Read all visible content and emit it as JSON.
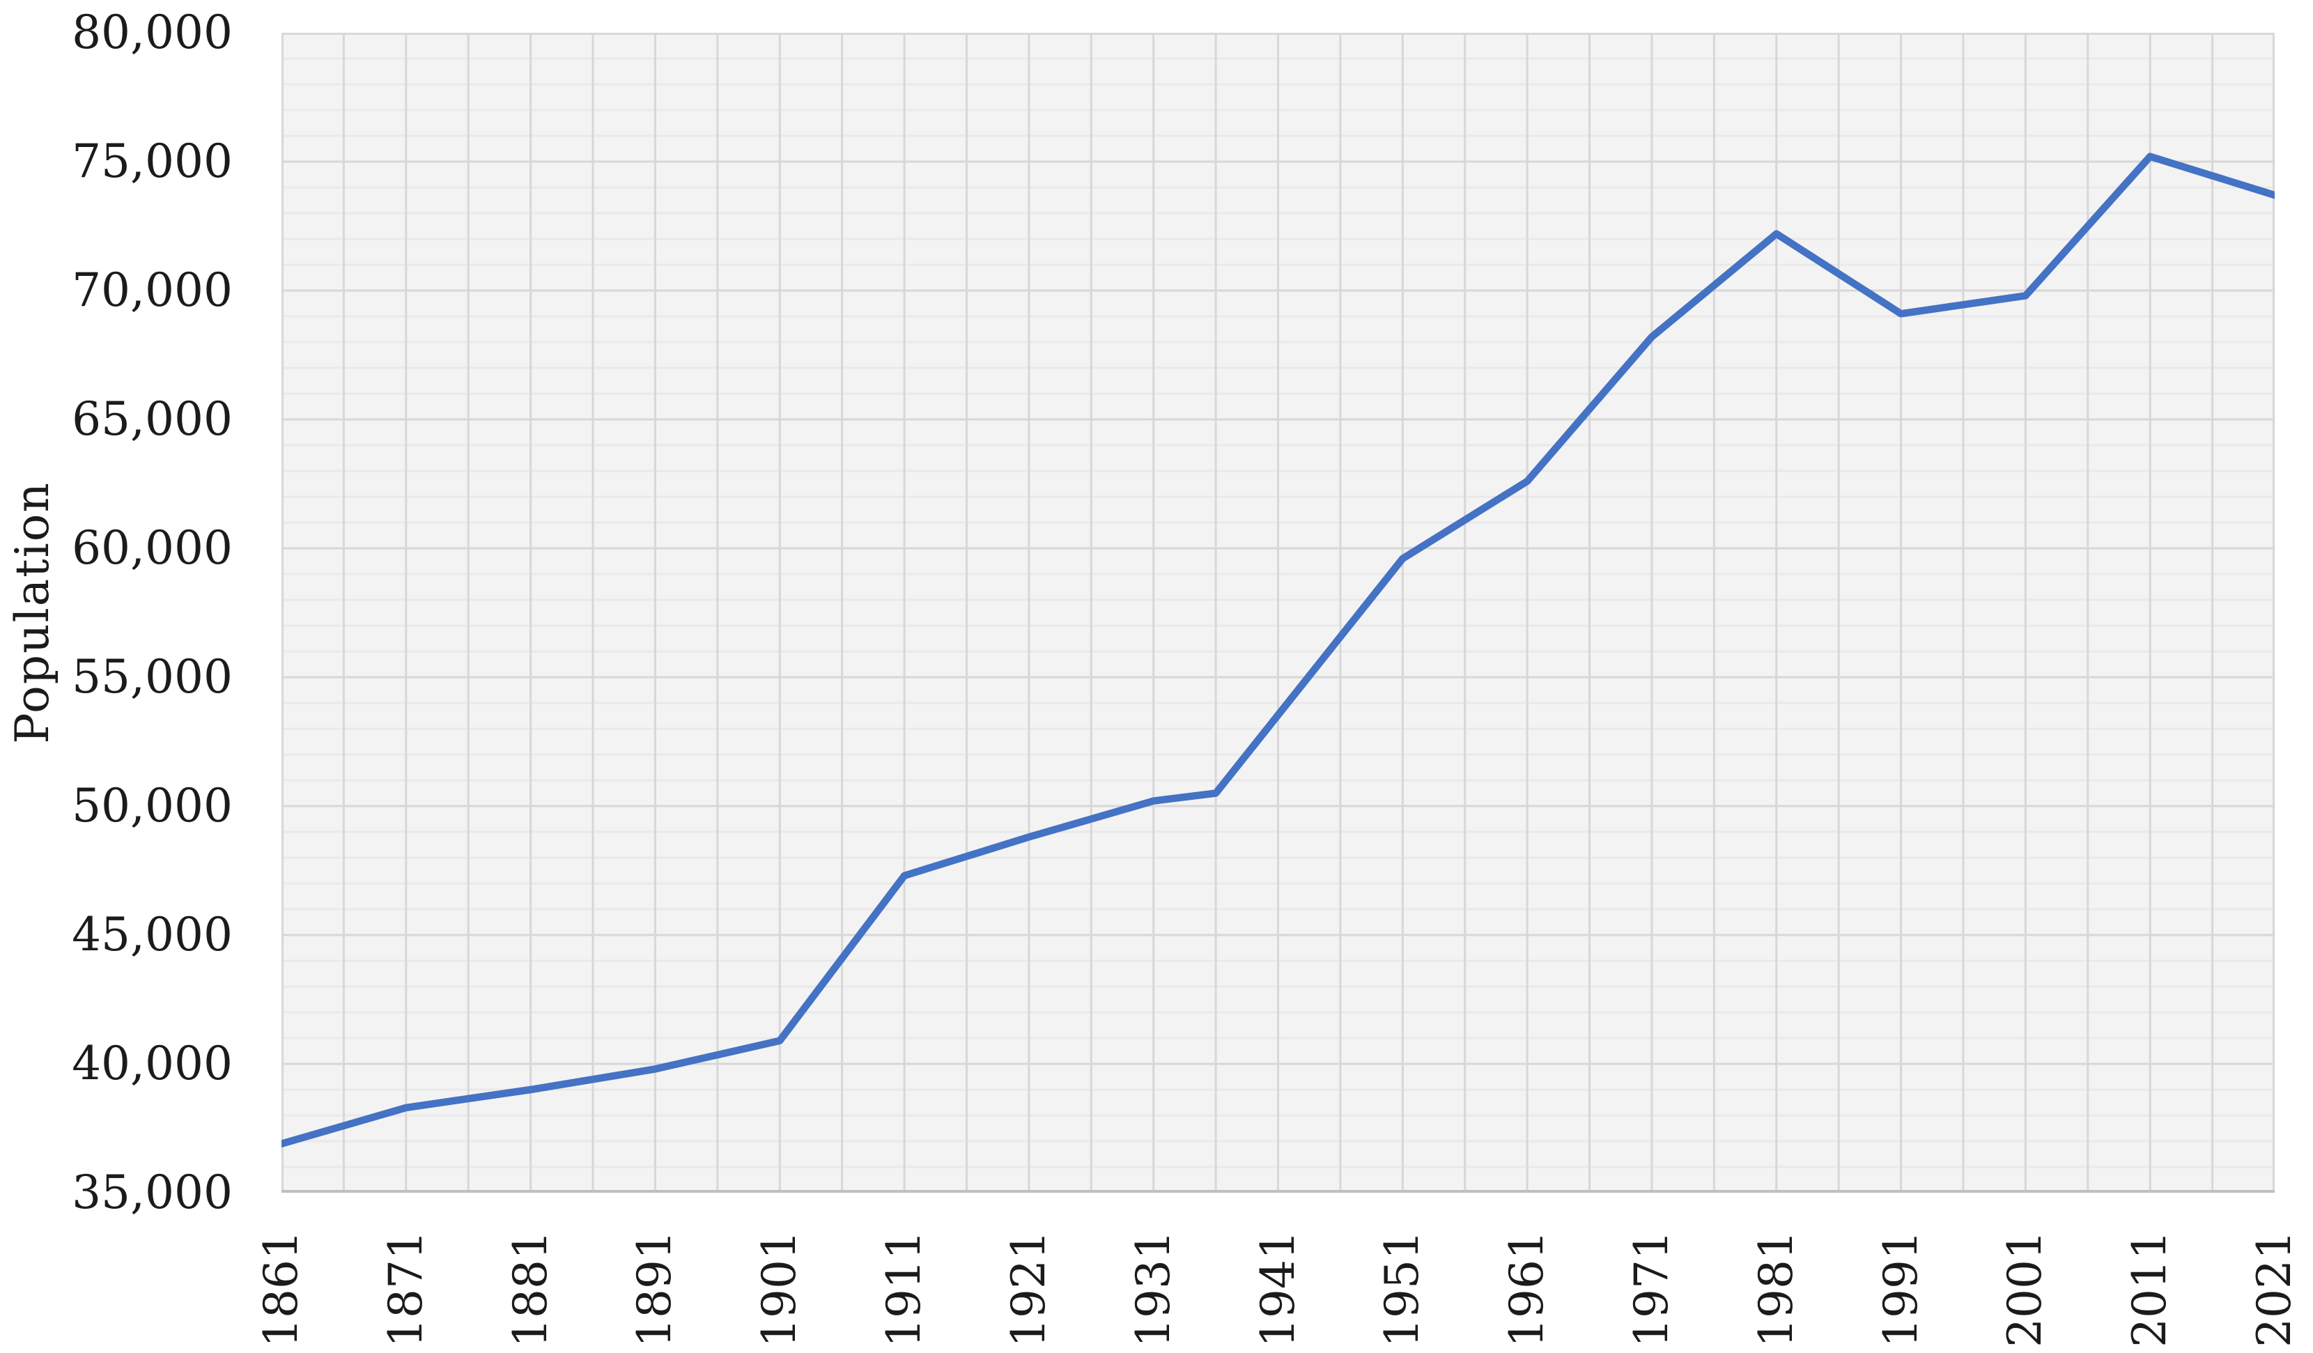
{
  "figure": {
    "kind": "excel-style line chart",
    "background_color": "#ffffff",
    "plot_background_color": "#f3f3f3",
    "major_grid_color": "#d7d7d7",
    "minor_grid_color": "#e9e9e9",
    "axis_line_color": "#bfbfbf",
    "axis_text_color": "#1b1b1b",
    "line_color": "#4472C4"
  },
  "chart_data": {
    "type": "line",
    "title": "",
    "xlabel": "",
    "ylabel": "Population",
    "legend": "none",
    "grid": "major vertical every 5 years; horizontal major every 5,000 with minor every 1,000",
    "xlim": [
      1861,
      2021
    ],
    "ylim": [
      35000,
      80000
    ],
    "x": [
      1861,
      1871,
      1881,
      1891,
      1901,
      1911,
      1921,
      1931,
      1936,
      1951,
      1961,
      1971,
      1981,
      1991,
      2001,
      2011,
      2021
    ],
    "series": [
      {
        "name": "Population",
        "values": [
          36900,
          38300,
          39000,
          39800,
          40900,
          47300,
          48800,
          50200,
          50500,
          59600,
          62600,
          68200,
          72200,
          69100,
          69800,
          75200,
          73700
        ]
      }
    ],
    "y_tick_labels": [
      "35,000",
      "40,000",
      "45,000",
      "50,000",
      "55,000",
      "60,000",
      "65,000",
      "70,000",
      "75,000",
      "80,000"
    ],
    "x_tick_labels": [
      "1861",
      "1871",
      "1881",
      "1891",
      "1901",
      "1911",
      "1921",
      "1931",
      "1941",
      "1951",
      "1961",
      "1971",
      "1981",
      "1991",
      "2001",
      "2011",
      "2021"
    ],
    "x_grid_step_years": 5,
    "y_major_step": 5000,
    "y_minor_step": 1000
  }
}
